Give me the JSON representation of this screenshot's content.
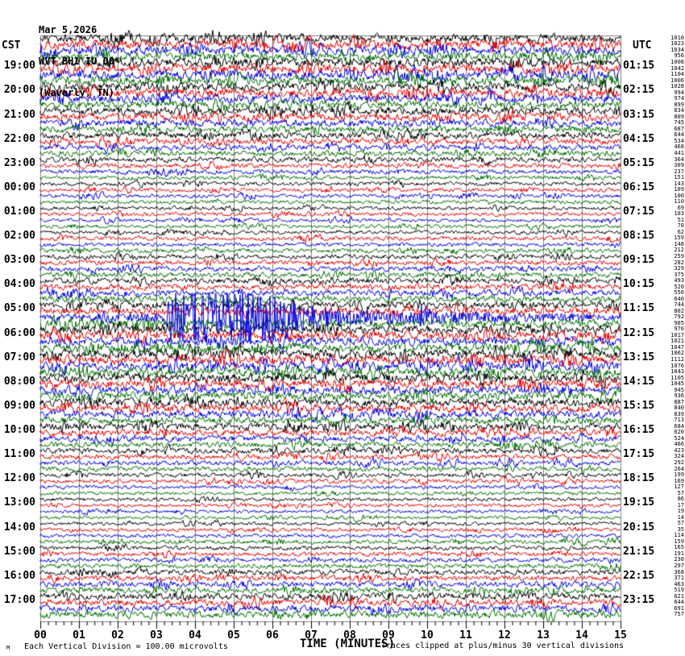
{
  "header": {
    "date": "Mar 5,2026",
    "station": "WVT BH1 IU 00",
    "location": "(Waverly, TN)"
  },
  "axes": {
    "left_timezone": "CST",
    "right_timezone": "UTC",
    "x_axis_label": "TIME (MINUTES)",
    "x_ticks": [
      "00",
      "01",
      "02",
      "03",
      "04",
      "05",
      "06",
      "07",
      "08",
      "09",
      "10",
      "11",
      "12",
      "13",
      "14",
      "15"
    ]
  },
  "footer": {
    "division_note": "Each Vertical Division =  100.00 microvolts",
    "clip_note": "Traces clipped at plus/minus 30 vertical divisions",
    "corner_mark": "M"
  },
  "chart_data": {
    "type": "line",
    "subtype": "helicorder_seismogram",
    "title": "WVT BH1 IU 00 (Waverly, TN) Mar 5,2026",
    "minutes_per_line": 15,
    "lines_per_hour": 4,
    "num_rows": 96,
    "first_row_cst": "18:00",
    "first_row_utc": "00:00",
    "trace_colors": [
      "#000000",
      "#e60000",
      "#0000e0",
      "#007000"
    ],
    "grid_color": "#808080",
    "units_per_division": "100.00 microvolts",
    "clip_divisions": 30,
    "left_hour_labels": [
      "19:00",
      "20:00",
      "21:00",
      "22:00",
      "23:00",
      "00:00",
      "01:00",
      "02:00",
      "03:00",
      "04:00",
      "05:00",
      "06:00",
      "07:00",
      "08:00",
      "09:00",
      "10:00",
      "11:00",
      "12:00",
      "13:00",
      "14:00",
      "15:00",
      "16:00",
      "17:00"
    ],
    "right_hour_labels": [
      "01:15",
      "02:15",
      "03:15",
      "04:15",
      "05:15",
      "06:15",
      "07:15",
      "08:15",
      "09:15",
      "10:15",
      "11:15",
      "12:15",
      "13:15",
      "14:15",
      "15:15",
      "16:15",
      "17:15",
      "18:15",
      "19:15",
      "20:15",
      "21:15",
      "22:15",
      "23:15"
    ],
    "row_amplitudes": [
      1010,
      1023,
      1034,
      956,
      1008,
      1042,
      1104,
      1006,
      1028,
      994,
      974,
      899,
      834,
      809,
      745,
      687,
      644,
      534,
      468,
      441,
      364,
      309,
      237,
      151,
      143,
      109,
      100,
      110,
      69,
      103,
      51,
      70,
      62,
      159,
      148,
      212,
      259,
      282,
      329,
      375,
      493,
      520,
      556,
      640,
      744,
      802,
      792,
      905,
      970,
      1017,
      1021,
      1047,
      1062,
      1112,
      1076,
      1043,
      1105,
      1045,
      945,
      936,
      887,
      840,
      839,
      713,
      684,
      620,
      524,
      466,
      423,
      324,
      292,
      264,
      199,
      169,
      127,
      57,
      86,
      17,
      19,
      14,
      57,
      35,
      114,
      159,
      165,
      191,
      230,
      297,
      368,
      371,
      463,
      519,
      621,
      644,
      691,
      757
    ],
    "event": {
      "row_index": 46,
      "row_start_cst": "05:30",
      "row_start_utc": "11:30",
      "trace_color": "#0000e0",
      "onset_minute": 3.2,
      "burst_start_minute": 3.4,
      "burst_end_minute": 5.4,
      "secondary_burst_minute": 10.0,
      "clipped": true,
      "description": "Large clipped seismic event with long decaying coda on the 05:30 CST / 11:30 UTC line"
    }
  }
}
